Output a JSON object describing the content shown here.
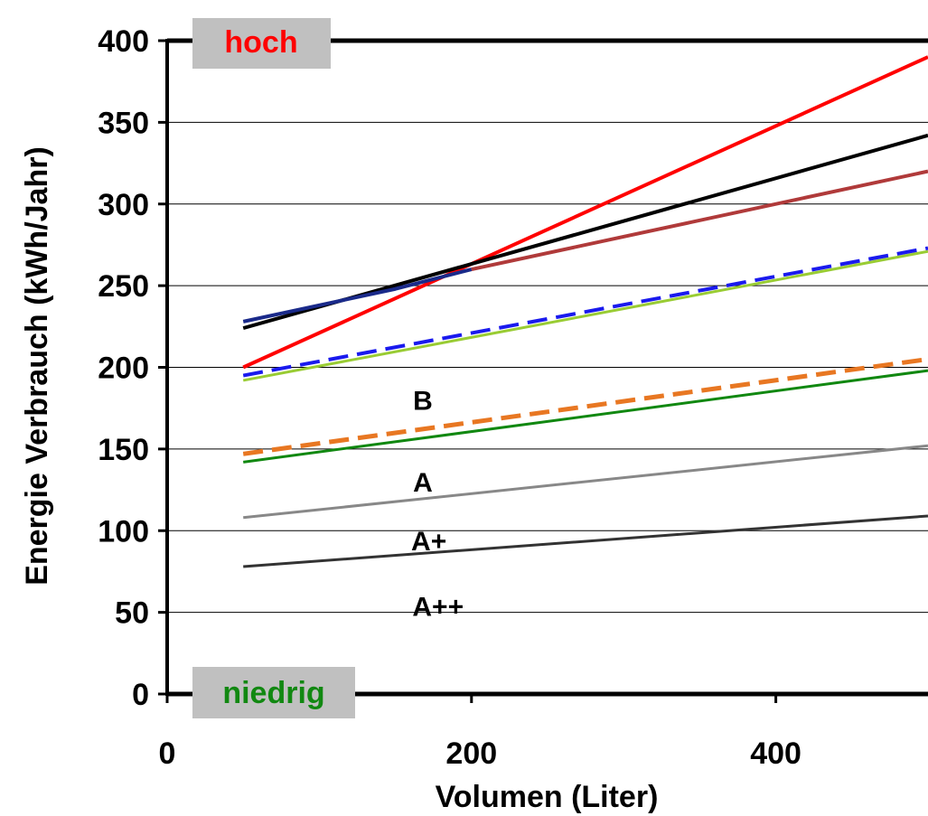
{
  "chart_data": {
    "type": "line",
    "xlabel": "Volumen (Liter)",
    "ylabel": "Energie Verbrauch (kWh/Jahr)",
    "xlim": [
      0,
      500
    ],
    "ylim": [
      0,
      400
    ],
    "x_ticks": [
      0,
      200,
      400
    ],
    "y_ticks": [
      0,
      50,
      100,
      150,
      200,
      250,
      300,
      350,
      400
    ],
    "grid": "horizontal",
    "series": [
      {
        "color": "#ff0000",
        "width": 4,
        "dash": "",
        "points": [
          [
            50,
            200
          ],
          [
            500,
            390
          ]
        ]
      },
      {
        "color": "#000000",
        "width": 4,
        "dash": "",
        "points": [
          [
            50,
            224
          ],
          [
            500,
            342
          ]
        ]
      },
      {
        "color": "#1a2a8a",
        "width": 4,
        "dash": "",
        "points": [
          [
            50,
            228
          ],
          [
            150,
            248
          ],
          [
            200,
            260
          ]
        ]
      },
      {
        "color": "#b03a3a",
        "width": 4,
        "dash": "",
        "points": [
          [
            200,
            260
          ],
          [
            500,
            320
          ]
        ]
      },
      {
        "color": "#99cc33",
        "width": 3,
        "dash": "",
        "points": [
          [
            50,
            192
          ],
          [
            500,
            271
          ]
        ]
      },
      {
        "color": "#1a1aee",
        "width": 4,
        "dash": "22 10",
        "points": [
          [
            50,
            195
          ],
          [
            500,
            273
          ]
        ]
      },
      {
        "color": "#e87722",
        "width": 5,
        "dash": "22 10",
        "points": [
          [
            50,
            147
          ],
          [
            500,
            205
          ]
        ]
      },
      {
        "color": "#118811",
        "width": 3,
        "dash": "",
        "points": [
          [
            50,
            142
          ],
          [
            500,
            198
          ]
        ]
      },
      {
        "color": "#888888",
        "width": 3,
        "dash": "",
        "points": [
          [
            50,
            108
          ],
          [
            500,
            152
          ]
        ]
      },
      {
        "color": "#333333",
        "width": 3,
        "dash": "",
        "points": [
          [
            50,
            78
          ],
          [
            500,
            109
          ]
        ]
      }
    ],
    "annotations": [
      {
        "text": "B",
        "x": 168,
        "y": 180
      },
      {
        "text": "A",
        "x": 168,
        "y": 130
      },
      {
        "text": "A+",
        "x": 172,
        "y": 94
      },
      {
        "text": "A++",
        "x": 178,
        "y": 54
      }
    ],
    "range_labels": {
      "high": {
        "text": "hoch",
        "color": "#ff0000"
      },
      "low": {
        "text": "niedrig",
        "color": "#118811"
      }
    },
    "box_color": "#c0c0c0"
  }
}
